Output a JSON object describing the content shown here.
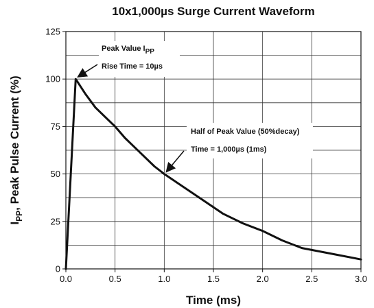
{
  "chart_data": {
    "type": "line",
    "title": "10x1,000µs Surge Current Waveform",
    "xlabel": "Time (ms)",
    "ylabel": {
      "main": "I",
      "subscript": "PP",
      "rest": ", Peak Pulse Current (%)"
    },
    "xlim": [
      0,
      3.0
    ],
    "ylim": [
      0,
      125
    ],
    "x_ticks": [
      0,
      0.5,
      1,
      1.5,
      2,
      2.5,
      3
    ],
    "x_tick_labels": [
      "0.0",
      "0.5",
      "1.0",
      "1.5",
      "2.0",
      "2.5",
      "3.0"
    ],
    "y_ticks": [
      0,
      25,
      50,
      75,
      100,
      125
    ],
    "y_tick_labels": [
      "0",
      "25",
      "50",
      "75",
      "100",
      "125"
    ],
    "x_gridlines": [
      0.5,
      1,
      1.5,
      2,
      2.5
    ],
    "y_gridlines": [
      12.5,
      25,
      37.5,
      50,
      62.5,
      75,
      87.5,
      100,
      112.5
    ],
    "grid": true,
    "series": [
      {
        "color": "#111111",
        "x": [
          0,
          0.1,
          0.2,
          0.3,
          0.4,
          0.5,
          0.6,
          0.7,
          0.8,
          0.9,
          1.0,
          1.2,
          1.4,
          1.6,
          1.8,
          2.0,
          2.2,
          2.4,
          2.6,
          2.8,
          3.0
        ],
        "y": [
          0,
          100,
          92,
          85,
          80,
          75,
          69,
          64,
          59,
          54,
          50,
          43,
          36,
          29,
          24,
          20,
          15,
          11,
          9,
          7,
          5
        ]
      }
    ],
    "annotations": [
      {
        "lines": [
          {
            "text": "Peak Value I",
            "subscript": "PP"
          },
          {
            "text": "Rise Time = 10µs"
          }
        ],
        "arrow_to": [
          0.1,
          100
        ]
      },
      {
        "lines": [
          {
            "text": "Half of Peak Value (50%decay)"
          },
          {
            "text": "Time = 1,000µs (1ms)"
          }
        ],
        "arrow_to": [
          1.0,
          50
        ]
      }
    ]
  }
}
